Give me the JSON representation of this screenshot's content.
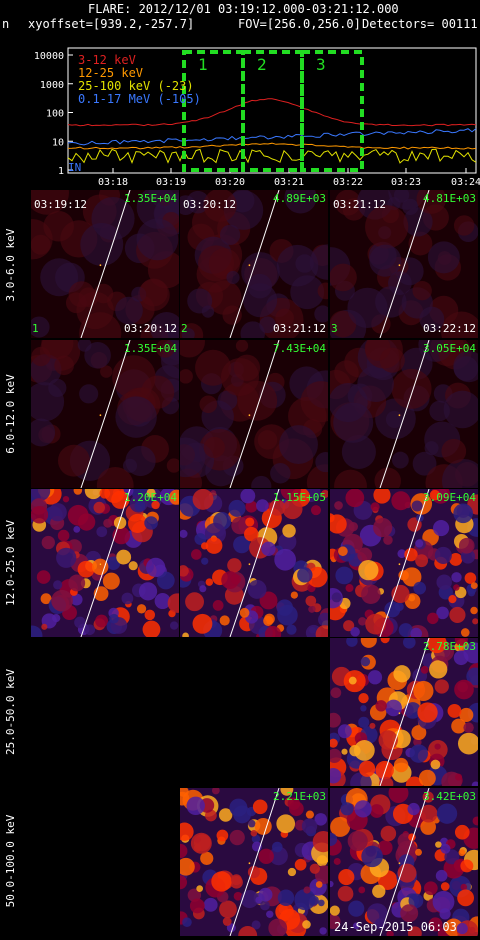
{
  "header": {
    "flare": "FLARE: 2012/12/01 03:19:12.000-03:21:12.000",
    "left_fragment": "n",
    "xyoffset": "xyoffset=[939.2,-257.7]",
    "fov": "FOV=[256.0,256.0]",
    "detectors": "Detectors= 00111"
  },
  "lightcurve": {
    "y_ticks": [
      "10000",
      "1000",
      "100",
      "10",
      "1"
    ],
    "x_ticks": [
      "03:18",
      "03:19",
      "03:20",
      "03:21",
      "03:22",
      "03:23",
      "03:24"
    ],
    "interval_labels": [
      "1",
      "2",
      "3"
    ],
    "legend": [
      {
        "text": "3-12 keV",
        "color": "#dd2020"
      },
      {
        "text": "12-25 keV",
        "color": "#ff9900"
      },
      {
        "text": "25-100 keV (-23)",
        "color": "#e0e000"
      },
      {
        "text": "0.1-17 MeV (-105)",
        "color": "#3a78ff"
      }
    ],
    "interval_color": "#22dd22",
    "corner_text": "IN"
  },
  "bands": [
    "3.0-6.0 keV",
    "6.0-12.0 keV",
    "12.0-25.0 keV",
    "25.0-50.0 keV",
    "50.0-100.0 keV"
  ],
  "tiles": [
    {
      "row": 0,
      "col": 0,
      "max": "1.35E+04",
      "tl": "03:19:12",
      "bl": "1",
      "br": "03:20:12"
    },
    {
      "row": 0,
      "col": 1,
      "max": "4.89E+03",
      "tl": "03:20:12",
      "bl": "2",
      "br": "03:21:12"
    },
    {
      "row": 0,
      "col": 2,
      "max": "4.81E+03",
      "tl": "03:21:12",
      "bl": "3",
      "br": "03:22:12"
    },
    {
      "row": 1,
      "col": 0,
      "max": "1.35E+04"
    },
    {
      "row": 1,
      "col": 1,
      "max": "7.43E+04"
    },
    {
      "row": 1,
      "col": 2,
      "max": "3.05E+04"
    },
    {
      "row": 2,
      "col": 0,
      "max": "1.20E+04"
    },
    {
      "row": 2,
      "col": 1,
      "max": "1.15E+05"
    },
    {
      "row": 2,
      "col": 2,
      "max": "3.09E+04"
    },
    {
      "row": 3,
      "col": 2,
      "max": "2.78E+03"
    },
    {
      "row": 4,
      "col": 1,
      "max": "2.21E+03"
    },
    {
      "row": 4,
      "col": 2,
      "max": "3.42E+03"
    }
  ],
  "footer": {
    "date": "24-Sep-2015 06:03"
  },
  "colors": {
    "label_green": "#33ff33",
    "background": "#000000"
  }
}
